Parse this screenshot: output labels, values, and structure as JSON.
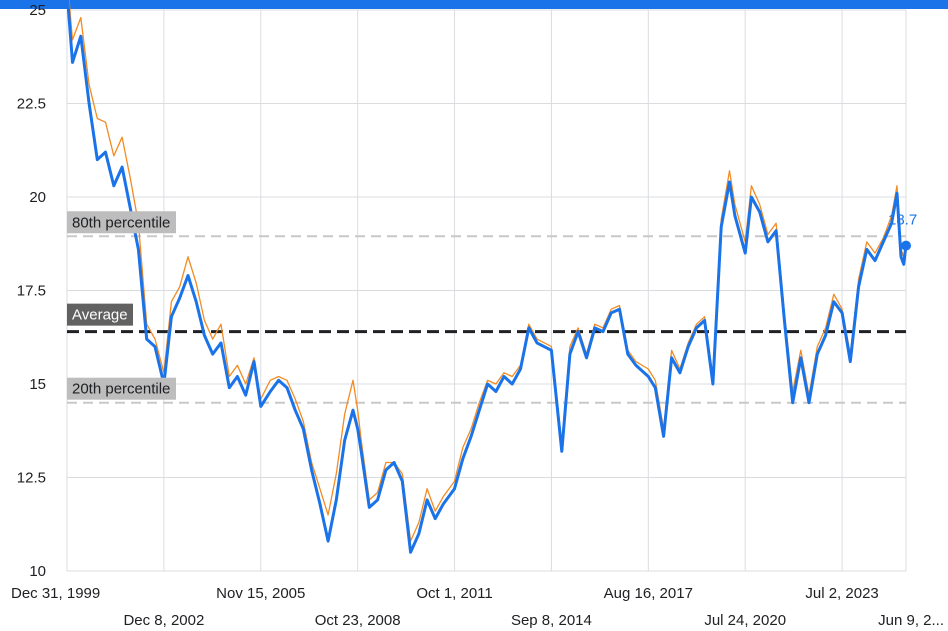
{
  "chart_data": {
    "type": "line",
    "ylim": [
      10,
      25
    ],
    "y_ticks": [
      "10",
      "12.5",
      "15",
      "17.5",
      "20",
      "22.5",
      "25"
    ],
    "x_ticks_row1": [
      "Dec 31, 1999",
      "Nov 15, 2005",
      "Oct 1, 2011",
      "Aug 16, 2017",
      "Jul 2, 2023"
    ],
    "x_ticks_row2": [
      "Dec 8, 2002",
      "Oct 23, 2008",
      "Sep 8, 2014",
      "Jul 24, 2020",
      "Jun 9, 2..."
    ],
    "grid": true,
    "reference_lines": [
      {
        "label": "80th percentile",
        "value": 18.95,
        "style": "dashed",
        "color": "#c8c8c8"
      },
      {
        "label": "Average",
        "value": 16.4,
        "style": "dashed",
        "color": "#202124"
      },
      {
        "label": "20th percentile",
        "value": 14.5,
        "style": "dashed",
        "color": "#c8c8c8"
      }
    ],
    "last_value_label": "18.7",
    "colors": {
      "primary": "#1a73e8",
      "secondary": "#f28b22",
      "accent_band": "#1a73e8"
    },
    "series": [
      {
        "color": "#1a73e8",
        "x": [
          "1999-12-31",
          "2000-03-01",
          "2000-06-01",
          "2000-09-01",
          "2000-12-01",
          "2001-03-01",
          "2001-06-01",
          "2001-09-01",
          "2001-12-01",
          "2002-03-01",
          "2002-06-01",
          "2002-09-01",
          "2002-12-08",
          "2003-03-01",
          "2003-06-01",
          "2003-09-01",
          "2003-12-01",
          "2004-03-01",
          "2004-06-01",
          "2004-09-01",
          "2004-12-01",
          "2005-03-01",
          "2005-06-01",
          "2005-09-01",
          "2005-11-15",
          "2006-03-01",
          "2006-06-01",
          "2006-09-01",
          "2006-12-01",
          "2007-03-01",
          "2007-06-01",
          "2007-09-01",
          "2007-12-01",
          "2008-03-01",
          "2008-06-01",
          "2008-09-01",
          "2008-10-23",
          "2008-12-01",
          "2009-03-01",
          "2009-06-01",
          "2009-09-01",
          "2009-12-01",
          "2010-03-01",
          "2010-06-01",
          "2010-09-01",
          "2010-12-01",
          "2011-03-01",
          "2011-06-01",
          "2011-10-01",
          "2012-01-01",
          "2012-04-01",
          "2012-07-01",
          "2012-10-01",
          "2013-01-01",
          "2013-04-01",
          "2013-07-01",
          "2013-10-01",
          "2014-01-01",
          "2014-04-01",
          "2014-09-08",
          "2015-01-01",
          "2015-04-01",
          "2015-07-01",
          "2015-10-01",
          "2016-01-01",
          "2016-04-01",
          "2016-07-01",
          "2016-10-01",
          "2017-01-01",
          "2017-04-01",
          "2017-08-16",
          "2017-11-01",
          "2018-02-01",
          "2018-05-01",
          "2018-08-01",
          "2018-11-01",
          "2019-02-01",
          "2019-05-01",
          "2019-08-01",
          "2019-11-01",
          "2020-02-01",
          "2020-04-01",
          "2020-07-24",
          "2020-10-01",
          "2021-01-01",
          "2021-04-01",
          "2021-07-01",
          "2021-10-01",
          "2022-01-01",
          "2022-04-01",
          "2022-07-01",
          "2022-10-01",
          "2023-01-01",
          "2023-04-01",
          "2023-07-02",
          "2023-10-01",
          "2024-01-01",
          "2024-04-01",
          "2024-07-01",
          "2024-10-01",
          "2025-01-01",
          "2025-03-01",
          "2025-04-15",
          "2025-05-15",
          "2025-06-09"
        ],
        "values": [
          25.5,
          23.6,
          24.3,
          22.5,
          21.0,
          21.2,
          20.3,
          20.8,
          19.7,
          18.6,
          16.2,
          16.0,
          15.0,
          16.8,
          17.3,
          17.9,
          17.2,
          16.3,
          15.8,
          16.1,
          14.9,
          15.2,
          14.7,
          15.6,
          14.4,
          14.8,
          15.1,
          14.9,
          14.3,
          13.8,
          12.7,
          11.8,
          10.8,
          11.9,
          13.5,
          14.3,
          13.8,
          13.2,
          11.7,
          11.9,
          12.7,
          12.9,
          12.4,
          10.5,
          11.0,
          11.9,
          11.4,
          11.8,
          12.2,
          13.0,
          13.6,
          14.3,
          15.0,
          14.8,
          15.2,
          15.0,
          15.4,
          16.5,
          16.1,
          15.9,
          13.2,
          15.8,
          16.4,
          15.7,
          16.5,
          16.4,
          16.9,
          17.0,
          15.8,
          15.5,
          15.2,
          14.9,
          13.6,
          15.7,
          15.3,
          16.0,
          16.5,
          16.7,
          15.0,
          19.2,
          20.4,
          19.5,
          18.5,
          20.0,
          19.6,
          18.8,
          19.1,
          16.7,
          14.5,
          15.7,
          14.5,
          15.8,
          16.3,
          17.2,
          16.9,
          15.6,
          17.6,
          18.6,
          18.3,
          18.8,
          19.3,
          20.1,
          18.4,
          18.2,
          18.7
        ],
        "offset_series": {
          "color": "#f28b22",
          "values": [
            25.9,
            24.2,
            24.8,
            23.0,
            22.1,
            22.0,
            21.1,
            21.6,
            20.5,
            19.3,
            16.6,
            16.2,
            15.3,
            17.2,
            17.6,
            18.4,
            17.7,
            16.7,
            16.2,
            16.6,
            15.2,
            15.5,
            15.0,
            15.7,
            14.6,
            15.1,
            15.2,
            15.1,
            14.6,
            14.0,
            12.9,
            12.2,
            11.5,
            12.6,
            14.2,
            15.1,
            14.3,
            13.5,
            11.9,
            12.1,
            12.9,
            12.9,
            12.6,
            10.8,
            11.3,
            12.2,
            11.6,
            12.0,
            12.4,
            13.3,
            13.8,
            14.5,
            15.1,
            15.0,
            15.3,
            15.2,
            15.5,
            16.6,
            16.2,
            16.0,
            13.4,
            16.0,
            16.5,
            15.8,
            16.6,
            16.5,
            17.0,
            17.1,
            15.9,
            15.6,
            15.4,
            15.1,
            13.8,
            15.9,
            15.4,
            16.1,
            16.6,
            16.8,
            15.2,
            19.4,
            20.7,
            19.8,
            18.8,
            20.3,
            19.8,
            19.0,
            19.3,
            16.9,
            14.8,
            15.9,
            14.7,
            16.0,
            16.5,
            17.4,
            17.0,
            15.8,
            17.8,
            18.8,
            18.5,
            18.9,
            19.5,
            20.3,
            18.6,
            18.4,
            18.8
          ]
        }
      }
    ]
  }
}
